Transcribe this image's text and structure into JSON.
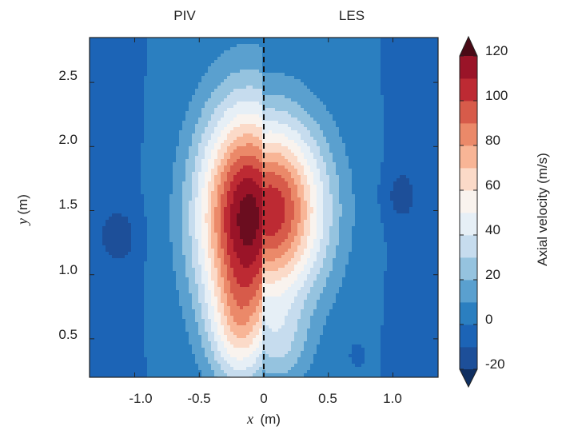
{
  "chart_data": {
    "type": "heatmap",
    "panels": [
      "PIV",
      "LES"
    ],
    "xlabel_var": "x",
    "xlabel_unit": "(m)",
    "ylabel_var": "y",
    "ylabel_unit": "(m)",
    "xlim": [
      -1.35,
      1.35
    ],
    "ylim": [
      0.2,
      2.85
    ],
    "xticks": [
      -1.0,
      -0.5,
      0,
      0.5,
      1.0
    ],
    "xtick_labels": [
      "-1.0",
      "-0.5",
      "0",
      "0.5",
      "1.0"
    ],
    "yticks": [
      0.5,
      1.0,
      1.5,
      2.0,
      2.5
    ],
    "ytick_labels": [
      "0.5",
      "1.0",
      "1.5",
      "2.0",
      "2.5"
    ],
    "divider_x": 0,
    "colorbar": {
      "label": "Axial velocity (m/s)",
      "min": -25,
      "max": 120,
      "levels": [
        -20,
        -10,
        0,
        10,
        20,
        30,
        40,
        50,
        60,
        70,
        80,
        90,
        100,
        110,
        120
      ],
      "ticks": [
        -20,
        0,
        20,
        40,
        60,
        80,
        100,
        120
      ],
      "tick_labels": [
        "-20",
        "0",
        "20",
        "40",
        "60",
        "80",
        "100",
        "120"
      ],
      "colors": [
        "#1d4f99",
        "#1c64b6",
        "#2b7fc0",
        "#5aa0cf",
        "#95c3df",
        "#c6dcee",
        "#e6eff6",
        "#f9f3ee",
        "#fbdac8",
        "#f8b596",
        "#eb8969",
        "#d75b4a",
        "#bd2a33",
        "#9a1428",
        "#6b0d1f"
      ],
      "extend_colors": [
        "#0f2f61",
        "#4a0a16"
      ]
    },
    "fields": [
      {
        "name": "PIV",
        "background": 0,
        "jets": [
          {
            "x": -0.12,
            "y": 1.45,
            "peak": 125,
            "sx": 0.38,
            "sy": 0.85
          },
          {
            "x": -0.2,
            "y": 0.55,
            "peak": 35,
            "sx": 0.22,
            "sy": 0.45
          }
        ],
        "recirculation": [
          {
            "x": -1.1,
            "y": 1.3,
            "depth": -12,
            "sx": 0.14,
            "sy": 0.22
          }
        ]
      },
      {
        "name": "LES",
        "background": 0,
        "jets": [
          {
            "x": 0.05,
            "y": 1.5,
            "peak": 108,
            "sx": 0.42,
            "sy": 0.7
          },
          {
            "x": 0.1,
            "y": 0.45,
            "peak": 25,
            "sx": 0.25,
            "sy": 0.35
          }
        ],
        "recirculation": [
          {
            "x": 1.05,
            "y": 1.62,
            "depth": -12,
            "sx": 0.12,
            "sy": 0.22
          },
          {
            "x": 0.72,
            "y": 0.38,
            "depth": -6,
            "sx": 0.04,
            "sy": 0.06
          }
        ]
      }
    ]
  }
}
